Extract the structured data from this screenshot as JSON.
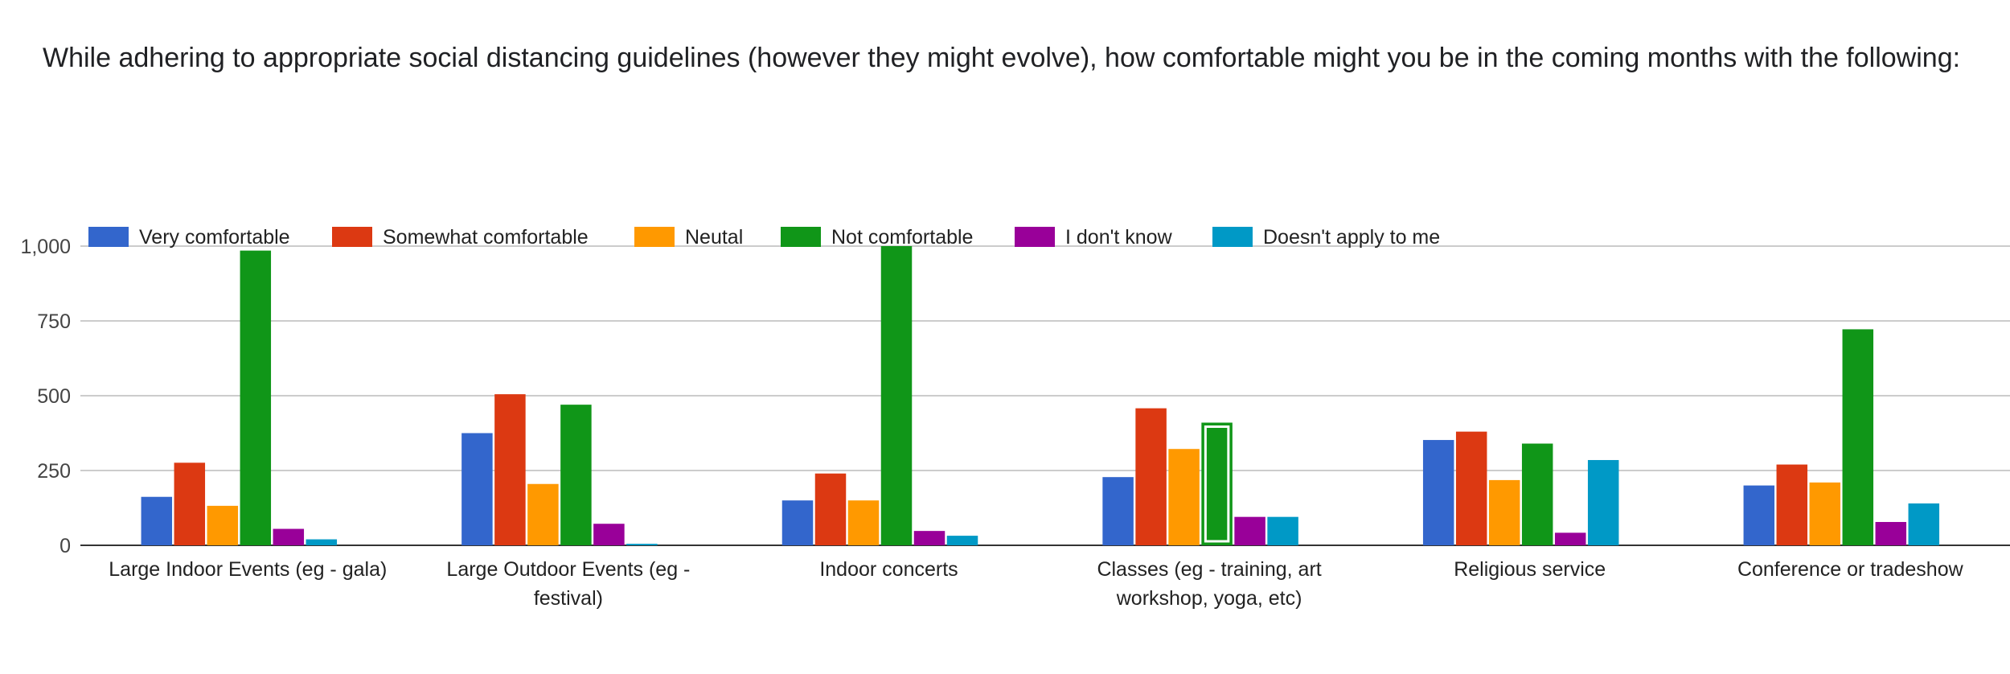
{
  "question": {
    "text": "While adhering to appropriate social distancing guidelines (however they might evolve), how comfortable might you be in the coming months with the following:"
  },
  "chart_data": {
    "type": "bar",
    "title": "",
    "xlabel": "",
    "ylabel": "",
    "ylim": [
      0,
      1000
    ],
    "y_ticks": [
      0,
      250,
      500,
      750,
      1000
    ],
    "y_tick_labels": [
      "0",
      "250",
      "500",
      "750",
      "1,000"
    ],
    "grid": true,
    "legend_position": "top-left",
    "categories": [
      [
        "Large Indoor Events (eg - gala)"
      ],
      [
        "Large Outdoor Events (eg -",
        "festival)"
      ],
      [
        "Indoor concerts"
      ],
      [
        "Classes (eg - training, art",
        "workshop, yoga, etc)"
      ],
      [
        "Religious service"
      ],
      [
        "Conference or tradeshow"
      ]
    ],
    "series": [
      {
        "name": "Very comfortable",
        "color": "#3366cc",
        "values": [
          162,
          375,
          150,
          228,
          352,
          200
        ]
      },
      {
        "name": "Somewhat comfortable",
        "color": "#dc3912",
        "values": [
          276,
          505,
          240,
          458,
          380,
          270
        ]
      },
      {
        "name": "Neutal",
        "color": "#ff9900",
        "values": [
          132,
          205,
          150,
          322,
          218,
          210
        ]
      },
      {
        "name": "Not comfortable",
        "color": "#109618",
        "values": [
          985,
          470,
          1000,
          410,
          340,
          722
        ]
      },
      {
        "name": "I don't know",
        "color": "#990099",
        "values": [
          55,
          72,
          48,
          95,
          42,
          78
        ]
      },
      {
        "name": "Doesn't apply to me",
        "color": "#0099c6",
        "values": [
          20,
          5,
          32,
          95,
          285,
          140
        ]
      }
    ],
    "highlighted": {
      "series": 3,
      "category": 3
    }
  }
}
